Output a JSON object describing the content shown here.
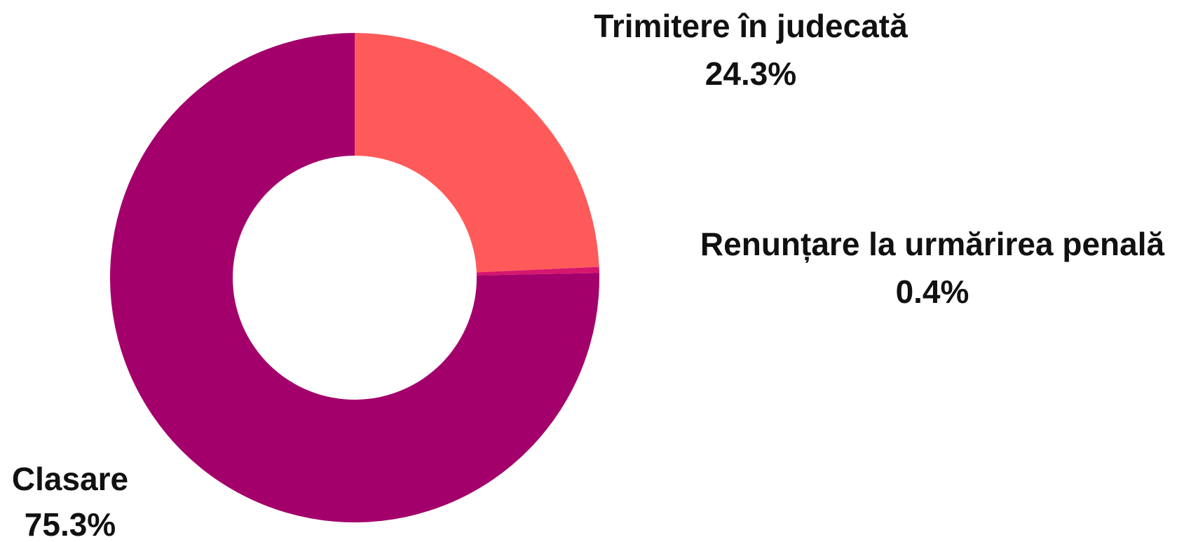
{
  "chart_data": {
    "type": "donut",
    "categories": [
      "Trimitere în judecată",
      "Renunțare la urmărirea penală",
      "Clasare"
    ],
    "values": [
      24.3,
      0.4,
      75.3
    ],
    "value_labels": [
      "24.3%",
      "0.4%",
      "75.3%"
    ],
    "colors": [
      "#ff5a5a",
      "#d6166e",
      "#a3006b"
    ]
  }
}
